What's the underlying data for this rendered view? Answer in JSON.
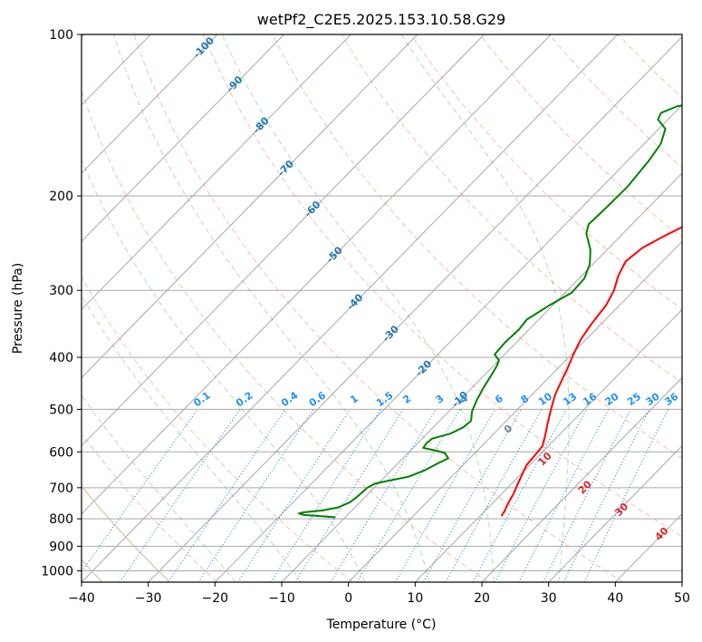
{
  "chart_data": {
    "type": "line",
    "title": "wetPf2_C2E5.2025.153.10.58.G29",
    "xlabel": "Temperature (°C)",
    "ylabel": "Pressure (hPa)",
    "xlim": [
      -40,
      50
    ],
    "ylim": [
      1050,
      100
    ],
    "y_scale": "log",
    "grid": true,
    "x_ticks": [
      "−40",
      "−30",
      "−20",
      "−10",
      "0",
      "10",
      "20",
      "30",
      "40",
      "50"
    ],
    "y_ticks": [
      "100",
      "200",
      "300",
      "400",
      "500",
      "600",
      "700",
      "800",
      "900",
      "1000"
    ],
    "series": [
      {
        "color": "#ff0000",
        "points": [
          [
            13.2,
            790
          ],
          [
            13.0,
            775
          ],
          [
            12.5,
            755
          ],
          [
            11.8,
            720
          ],
          [
            11.0,
            690
          ],
          [
            10.2,
            660
          ],
          [
            9.5,
            635
          ],
          [
            9.3,
            605
          ],
          [
            9.1,
            585
          ],
          [
            8.0,
            560
          ],
          [
            6.5,
            530
          ],
          [
            5.0,
            500
          ],
          [
            3.5,
            470
          ],
          [
            2.5,
            445
          ],
          [
            1.5,
            420
          ],
          [
            0.3,
            395
          ],
          [
            -0.8,
            370
          ],
          [
            -1.5,
            345
          ],
          [
            -2.0,
            320
          ],
          [
            -3.0,
            300
          ],
          [
            -4.5,
            282
          ],
          [
            -5.5,
            265
          ],
          [
            -5.0,
            250
          ],
          [
            -3.5,
            238
          ],
          [
            -2.0,
            228
          ],
          [
            -0.5,
            218
          ],
          [
            1.0,
            208
          ],
          [
            2.5,
            198
          ],
          [
            4.5,
            185
          ],
          [
            6.5,
            172
          ],
          [
            8.5,
            160
          ],
          [
            10.5,
            150
          ],
          [
            12.0,
            143
          ],
          [
            13.5,
            137
          ],
          [
            14.2,
            130
          ],
          [
            14.8,
            125
          ],
          [
            15.8,
            120
          ],
          [
            17.0,
            114
          ],
          [
            18.0,
            109
          ],
          [
            19.0,
            104
          ],
          [
            19.8,
            100
          ]
        ]
      },
      {
        "color": "#008000",
        "points": [
          [
            -11.5,
            795
          ],
          [
            -12.5,
            793
          ],
          [
            -14.5,
            790
          ],
          [
            -16.5,
            787
          ],
          [
            -17.5,
            782
          ],
          [
            -17.0,
            778
          ],
          [
            -14.5,
            772
          ],
          [
            -12.5,
            762
          ],
          [
            -11.5,
            745
          ],
          [
            -11.2,
            725
          ],
          [
            -11.0,
            700
          ],
          [
            -10.5,
            688
          ],
          [
            -9.0,
            680
          ],
          [
            -6.5,
            668
          ],
          [
            -5.0,
            650
          ],
          [
            -4.0,
            630
          ],
          [
            -3.2,
            617
          ],
          [
            -4.5,
            603
          ],
          [
            -6.5,
            596
          ],
          [
            -8.5,
            590
          ],
          [
            -8.7,
            578
          ],
          [
            -8.5,
            567
          ],
          [
            -6.5,
            555
          ],
          [
            -5.5,
            540
          ],
          [
            -5.3,
            525
          ],
          [
            -6.5,
            505
          ],
          [
            -7.5,
            480
          ],
          [
            -8.3,
            455
          ],
          [
            -9.0,
            430
          ],
          [
            -9.5,
            415
          ],
          [
            -10.0,
            405
          ],
          [
            -11.5,
            395
          ],
          [
            -11.7,
            375
          ],
          [
            -11.5,
            355
          ],
          [
            -11.8,
            340
          ],
          [
            -10.5,
            320
          ],
          [
            -9.0,
            303
          ],
          [
            -9.2,
            285
          ],
          [
            -10.5,
            268
          ],
          [
            -12.5,
            252
          ],
          [
            -15.5,
            235
          ],
          [
            -16.5,
            226
          ],
          [
            -16.3,
            210
          ],
          [
            -16.2,
            192
          ],
          [
            -16.8,
            172
          ],
          [
            -17.5,
            160
          ],
          [
            -19.0,
            150
          ],
          [
            -21.5,
            144
          ],
          [
            -22.0,
            140
          ],
          [
            -20.5,
            136
          ],
          [
            -17.0,
            134
          ],
          [
            -14.5,
            130
          ],
          [
            -13.5,
            125
          ],
          [
            -13.3,
            118
          ],
          [
            -12.5,
            112
          ],
          [
            -10.5,
            108
          ],
          [
            -8.5,
            104
          ],
          [
            -7.0,
            100
          ]
        ]
      }
    ],
    "isopleths": {
      "dry_adiabats_K": [
        250,
        270,
        290,
        310,
        330,
        350,
        370,
        390,
        410,
        430,
        450,
        470,
        490,
        510,
        530,
        550,
        570,
        590,
        610,
        630
      ],
      "moist_adiabats_C": [
        -20,
        -10,
        0,
        10,
        20,
        30
      ],
      "isotherm_labels": [
        "-100",
        "-90",
        "-80",
        "-70",
        "-60",
        "-50",
        "-40",
        "-30",
        "-20",
        "-10"
      ],
      "mixing_ratio_labels": [
        "0.1",
        "0.2",
        "0.4",
        "0.6",
        "1",
        "1.5",
        "2",
        "3",
        "4",
        "6",
        "8",
        "10",
        "13",
        "16",
        "20",
        "25",
        "30",
        "36"
      ],
      "theta_e_labels": [
        "0",
        "10",
        "20",
        "30",
        "40"
      ],
      "colors": {
        "isotherm": "#a9a9a9",
        "dry_adiabat": "#ff7f50",
        "moist_adiabat": "#2ca02c",
        "mixing_ratio": "#1e90ff",
        "isotherm_label": "#1f77b4",
        "theta_e_label_zero": "#808080",
        "theta_e_label": "#d62728",
        "dry_adiabat_thick": "#d2b48c"
      }
    }
  }
}
